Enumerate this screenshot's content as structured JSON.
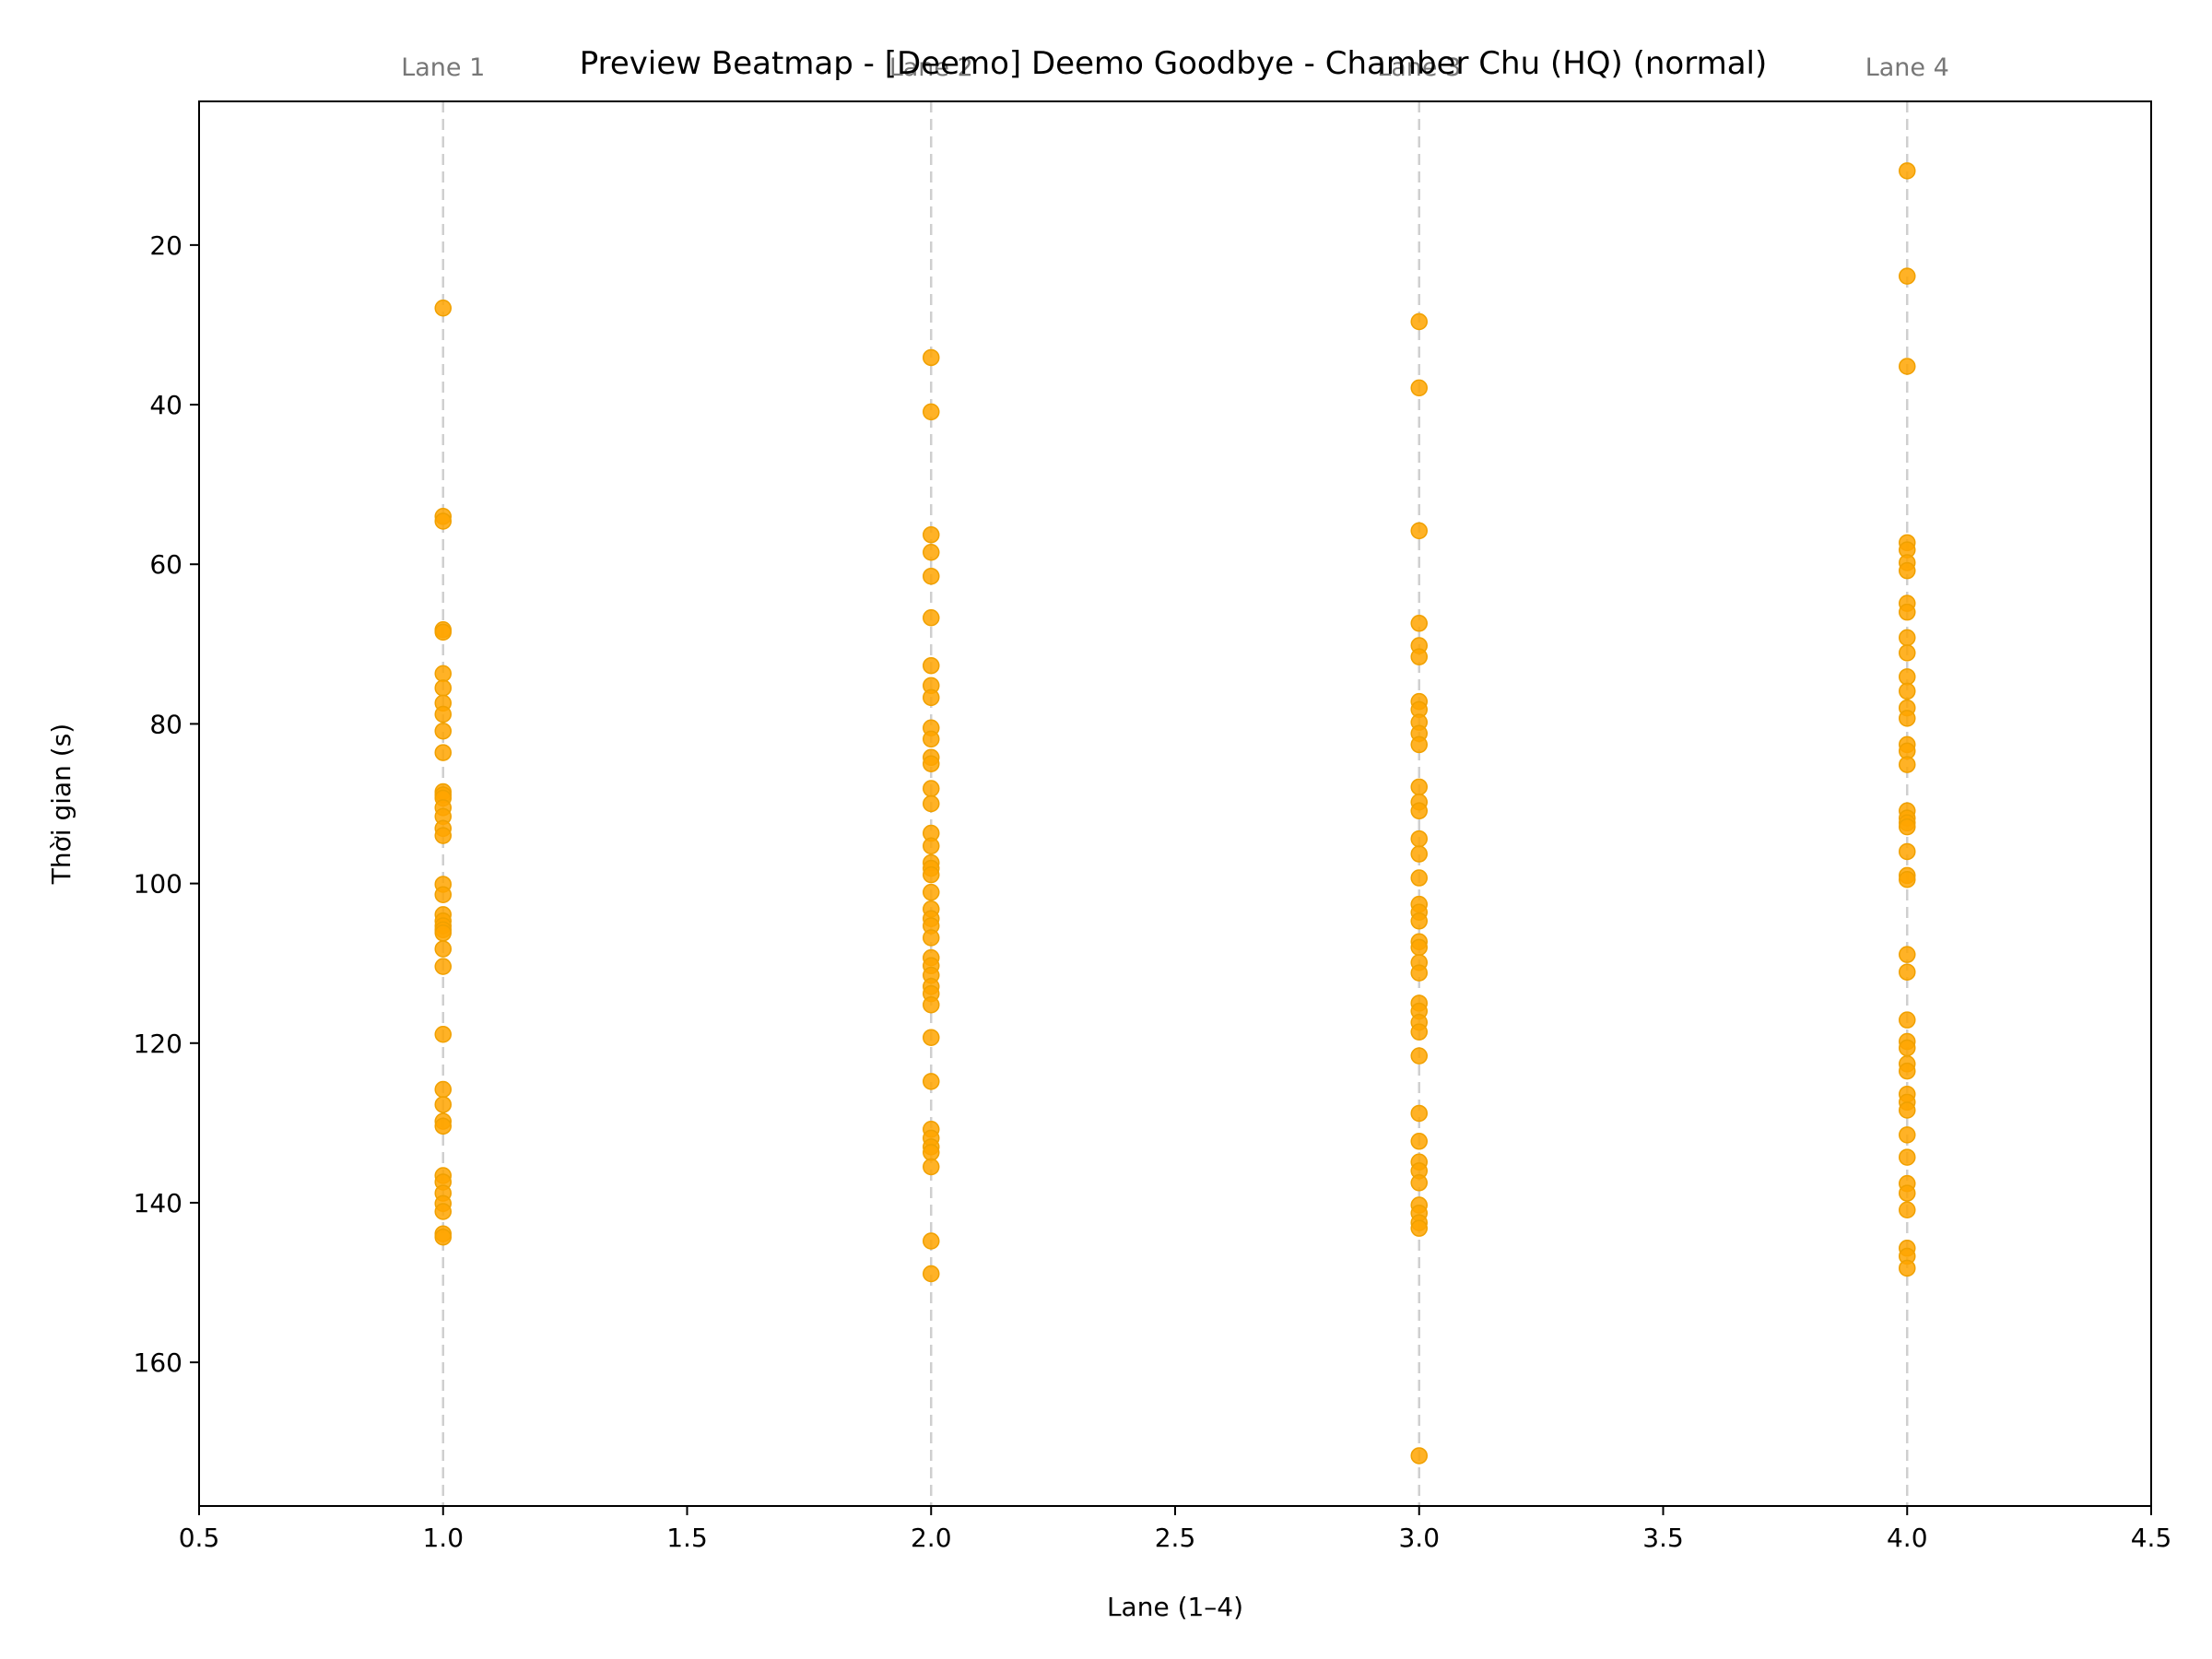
{
  "chart_data": {
    "type": "scatter",
    "title": "Preview Beatmap - [Deemo] Deemo Goodbye - Chamber Chu (HQ) (normal)",
    "xlabel": "Lane (1–4)",
    "ylabel": "Thời gian (s)",
    "xlim": [
      0.5,
      4.5
    ],
    "ylim": [
      178,
      2
    ],
    "y_inverted": true,
    "x_ticks": [
      "0.5",
      "1.0",
      "1.5",
      "2.0",
      "2.5",
      "3.0",
      "3.5",
      "4.0",
      "4.5"
    ],
    "x_tick_values": [
      0.5,
      1.0,
      1.5,
      2.0,
      2.5,
      3.0,
      3.5,
      4.0,
      4.5
    ],
    "y_ticks": [
      "20",
      "40",
      "60",
      "80",
      "100",
      "120",
      "140",
      "160"
    ],
    "y_tick_values": [
      20,
      40,
      60,
      80,
      100,
      120,
      140,
      160
    ],
    "lane_labels": [
      "Lane 1",
      "Lane 2",
      "Lane 3",
      "Lane 4"
    ],
    "grid": false,
    "marker_color": "#ffa500",
    "guide_color": "#cfcfcf",
    "series": [
      {
        "x": 1,
        "times": [
          27.9,
          54.0,
          54.6,
          68.2,
          68.5,
          73.7,
          75.5,
          77.4,
          78.8,
          80.9,
          83.6,
          88.5,
          88.9,
          89.3,
          90.5,
          91.6,
          93.1,
          94.0,
          100.1,
          101.4,
          103.9,
          104.7,
          105.3,
          105.8,
          106.2,
          108.2,
          110.4,
          118.9,
          125.8,
          127.7,
          129.8,
          130.4,
          136.6,
          137.4,
          138.8,
          140.1,
          141.1,
          143.9,
          144.3
        ]
      },
      {
        "x": 2,
        "times": [
          34.1,
          40.9,
          56.3,
          58.5,
          61.5,
          66.7,
          72.7,
          75.2,
          76.7,
          80.5,
          81.9,
          84.2,
          85.0,
          88.1,
          90.0,
          93.7,
          95.3,
          97.4,
          98.1,
          98.9,
          101.1,
          103.2,
          104.4,
          105.3,
          106.8,
          109.3,
          110.3,
          111.5,
          112.9,
          113.8,
          115.2,
          119.3,
          124.8,
          130.8,
          131.9,
          133.0,
          133.7,
          135.5,
          144.8,
          148.9
        ]
      },
      {
        "x": 3,
        "times": [
          29.6,
          37.9,
          55.8,
          67.4,
          70.2,
          71.6,
          77.2,
          78.2,
          79.8,
          81.2,
          82.6,
          87.9,
          89.8,
          90.9,
          94.4,
          96.3,
          99.3,
          102.6,
          103.6,
          104.7,
          107.3,
          108.0,
          109.9,
          111.2,
          115.0,
          116.0,
          117.4,
          118.6,
          121.6,
          128.8,
          132.3,
          134.9,
          136.0,
          137.5,
          140.3,
          141.3,
          142.5,
          143.2,
          171.7
        ]
      },
      {
        "x": 4,
        "times": [
          10.7,
          23.9,
          35.2,
          57.3,
          58.2,
          59.8,
          60.8,
          64.9,
          66.0,
          69.2,
          71.1,
          74.1,
          75.9,
          78.0,
          79.3,
          82.6,
          83.4,
          85.1,
          90.9,
          91.8,
          92.4,
          92.9,
          96.0,
          99.0,
          99.5,
          108.9,
          111.1,
          117.1,
          119.8,
          120.6,
          122.6,
          123.5,
          126.4,
          127.4,
          128.4,
          131.5,
          134.3,
          137.6,
          138.8,
          140.9,
          145.7,
          146.7,
          148.2
        ]
      }
    ]
  }
}
